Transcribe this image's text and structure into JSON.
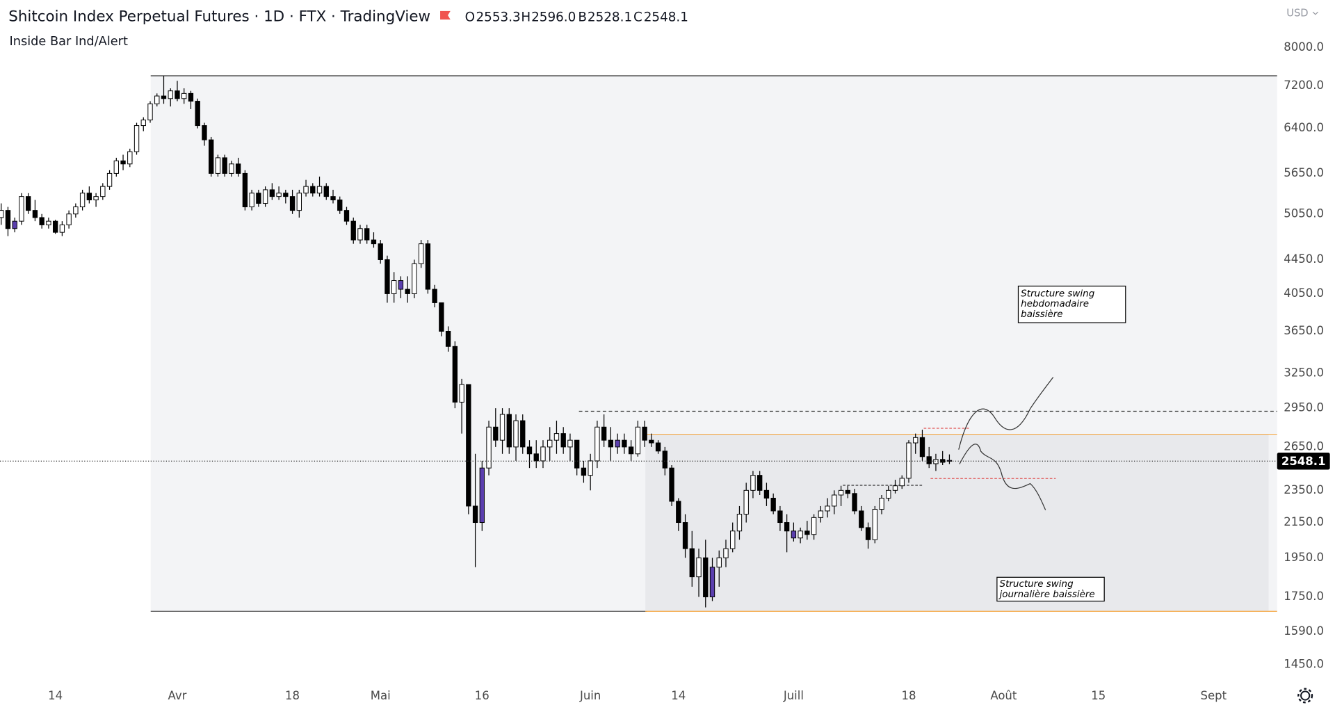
{
  "chart_data": {
    "type": "candlestick",
    "title": "Shitcoin Index Perpetual Futures · 1D · FTX · TradingView",
    "indicator": "Inside Bar Ind/Alert",
    "currency": "USD",
    "ohlc_prefixes": [
      "O",
      "H",
      "B",
      "C"
    ],
    "ohlc_value_labels": [
      "2553.3",
      "2596.0",
      "2528.1",
      "2548.1"
    ],
    "log_scale": true,
    "grid": false,
    "up_color": "#ffffff",
    "down_color": "#000000",
    "inside_bar_color": "#5b3fae",
    "ylim": [
      1386,
      9130
    ],
    "yticks": [
      {
        "value": 8000,
        "label": "8000.0"
      },
      {
        "value": 7200,
        "label": "7200.0"
      },
      {
        "value": 6400,
        "label": "6400.0"
      },
      {
        "value": 5650,
        "label": "5650.0"
      },
      {
        "value": 5050,
        "label": "5050.0"
      },
      {
        "value": 4450,
        "label": "4450.0"
      },
      {
        "value": 4050,
        "label": "4050.0"
      },
      {
        "value": 3650,
        "label": "3650.0"
      },
      {
        "value": 3250,
        "label": "3250.0"
      },
      {
        "value": 2950,
        "label": "2950.0"
      },
      {
        "value": 2650,
        "label": "2650.0"
      },
      {
        "value": 2350,
        "label": "2350.0"
      },
      {
        "value": 2150,
        "label": "2150.0"
      },
      {
        "value": 1950,
        "label": "1950.0"
      },
      {
        "value": 1750,
        "label": "1750.0"
      },
      {
        "value": 1590,
        "label": "1590.0"
      },
      {
        "value": 1450,
        "label": "1450.0"
      }
    ],
    "annotations": [
      {
        "lines": [
          "Structure swing",
          "hebdomadaire",
          "baissière"
        ]
      },
      {
        "lines": [
          "Structure swing",
          "journalière baissière"
        ]
      }
    ],
    "categories": [
      null,
      null,
      null,
      null,
      null,
      null,
      null,
      null,
      "14",
      null,
      null,
      null,
      null,
      null,
      null,
      null,
      null,
      null,
      null,
      null,
      null,
      null,
      null,
      null,
      null,
      null,
      "Avr",
      null,
      null,
      null,
      null,
      null,
      null,
      null,
      null,
      null,
      null,
      null,
      null,
      null,
      null,
      null,
      null,
      "18",
      null,
      null,
      null,
      null,
      null,
      null,
      null,
      null,
      null,
      null,
      null,
      null,
      "Mai",
      null,
      null,
      null,
      null,
      null,
      null,
      null,
      null,
      null,
      null,
      null,
      null,
      null,
      null,
      "16",
      null,
      null,
      null,
      null,
      null,
      null,
      null,
      null,
      null,
      null,
      null,
      null,
      null,
      null,
      null,
      "Juin",
      null,
      null,
      null,
      null,
      null,
      null,
      null,
      null,
      null,
      null,
      null,
      null,
      "14",
      null,
      null,
      null,
      null,
      null,
      null,
      null,
      null,
      null,
      null,
      null,
      null,
      null,
      null,
      null,
      null,
      "Juill",
      null,
      null,
      null,
      null,
      null,
      null,
      null,
      null,
      null,
      null,
      null,
      null,
      null,
      null,
      null,
      null,
      "18",
      null,
      null,
      null,
      null,
      null,
      null,
      null,
      null,
      null,
      null,
      null,
      null,
      null,
      "Août",
      null,
      null,
      null,
      null,
      null,
      null,
      null,
      null,
      null,
      null,
      null,
      null,
      null,
      "15",
      null,
      null,
      null,
      null,
      null,
      null,
      null,
      null,
      null,
      null,
      null,
      null,
      null,
      null,
      null,
      null,
      "Sept",
      null,
      null,
      null,
      null,
      null,
      null,
      null,
      null,
      null
    ],
    "ohlc": [
      [
        5000,
        5200,
        4900,
        5100
      ],
      [
        5100,
        5150,
        4750,
        4850
      ],
      [
        4850,
        5000,
        4800,
        4950
      ],
      [
        4950,
        5350,
        4900,
        5300
      ],
      [
        5300,
        5350,
        5050,
        5100
      ],
      [
        5100,
        5250,
        4950,
        5000
      ],
      [
        5000,
        5050,
        4850,
        4900
      ],
      [
        4900,
        5000,
        4850,
        4950
      ],
      [
        4950,
        4970,
        4780,
        4800
      ],
      [
        4800,
        4950,
        4750,
        4900
      ],
      [
        4900,
        5100,
        4850,
        5050
      ],
      [
        5050,
        5200,
        5000,
        5150
      ],
      [
        5150,
        5400,
        5100,
        5350
      ],
      [
        5350,
        5450,
        5200,
        5250
      ],
      [
        5250,
        5350,
        5150,
        5300
      ],
      [
        5300,
        5500,
        5250,
        5450
      ],
      [
        5450,
        5700,
        5400,
        5650
      ],
      [
        5650,
        5900,
        5600,
        5850
      ],
      [
        5850,
        5950,
        5700,
        5800
      ],
      [
        5800,
        6050,
        5750,
        6000
      ],
      [
        6000,
        6500,
        5950,
        6450
      ],
      [
        6450,
        6600,
        6350,
        6550
      ],
      [
        6550,
        6900,
        6500,
        6850
      ],
      [
        6850,
        7050,
        6800,
        7000
      ],
      [
        7000,
        7400,
        6850,
        6950
      ],
      [
        6950,
        7150,
        6800,
        7100
      ],
      [
        7100,
        7300,
        6900,
        6950
      ],
      [
        6950,
        7150,
        6850,
        7050
      ],
      [
        7050,
        7100,
        6750,
        6900
      ],
      [
        6900,
        6950,
        6400,
        6450
      ],
      [
        6450,
        6500,
        6100,
        6200
      ],
      [
        6200,
        6250,
        5600,
        5650
      ],
      [
        5650,
        5950,
        5600,
        5900
      ],
      [
        5900,
        5950,
        5600,
        5650
      ],
      [
        5650,
        5850,
        5600,
        5800
      ],
      [
        5800,
        5900,
        5600,
        5650
      ],
      [
        5650,
        5700,
        5100,
        5150
      ],
      [
        5150,
        5400,
        5100,
        5350
      ],
      [
        5350,
        5400,
        5150,
        5200
      ],
      [
        5200,
        5450,
        5150,
        5400
      ],
      [
        5400,
        5500,
        5250,
        5300
      ],
      [
        5300,
        5450,
        5250,
        5350
      ],
      [
        5350,
        5400,
        5200,
        5300
      ],
      [
        5300,
        5400,
        5050,
        5100
      ],
      [
        5100,
        5400,
        5000,
        5350
      ],
      [
        5350,
        5550,
        5300,
        5450
      ],
      [
        5450,
        5500,
        5300,
        5350
      ],
      [
        5350,
        5600,
        5300,
        5450
      ],
      [
        5450,
        5500,
        5250,
        5300
      ],
      [
        5300,
        5400,
        5200,
        5250
      ],
      [
        5250,
        5300,
        5050,
        5100
      ],
      [
        5100,
        5150,
        4900,
        4950
      ],
      [
        4950,
        5000,
        4650,
        4700
      ],
      [
        4700,
        4900,
        4650,
        4850
      ],
      [
        4850,
        4900,
        4650,
        4700
      ],
      [
        4700,
        4800,
        4600,
        4650
      ],
      [
        4650,
        4700,
        4400,
        4450
      ],
      [
        4450,
        4500,
        3950,
        4050
      ],
      [
        4050,
        4300,
        3950,
        4200
      ],
      [
        4200,
        4250,
        4000,
        4100
      ],
      [
        4100,
        4250,
        3950,
        4050
      ],
      [
        4050,
        4450,
        4000,
        4400
      ],
      [
        4400,
        4700,
        4350,
        4650
      ],
      [
        4650,
        4700,
        4050,
        4100
      ],
      [
        4100,
        4150,
        3900,
        3950
      ],
      [
        3950,
        3950,
        3600,
        3650
      ],
      [
        3650,
        3700,
        3450,
        3500
      ],
      [
        3500,
        3550,
        2950,
        3000
      ],
      [
        3000,
        3200,
        2750,
        3150
      ],
      [
        3150,
        3150,
        2200,
        2250
      ],
      [
        2250,
        2600,
        1900,
        2150
      ],
      [
        2150,
        2550,
        2100,
        2500
      ],
      [
        2500,
        2850,
        2450,
        2800
      ],
      [
        2800,
        2950,
        2650,
        2700
      ],
      [
        2700,
        2950,
        2600,
        2900
      ],
      [
        2900,
        2950,
        2600,
        2650
      ],
      [
        2650,
        2900,
        2550,
        2850
      ],
      [
        2850,
        2900,
        2600,
        2650
      ],
      [
        2650,
        2700,
        2500,
        2600
      ],
      [
        2600,
        2700,
        2500,
        2550
      ],
      [
        2550,
        2700,
        2500,
        2650
      ],
      [
        2650,
        2800,
        2550,
        2700
      ],
      [
        2700,
        2850,
        2600,
        2750
      ],
      [
        2750,
        2800,
        2600,
        2650
      ],
      [
        2650,
        2750,
        2550,
        2700
      ],
      [
        2700,
        2700,
        2450,
        2500
      ],
      [
        2500,
        2550,
        2400,
        2450
      ],
      [
        2450,
        2600,
        2350,
        2550
      ],
      [
        2550,
        2850,
        2500,
        2800
      ],
      [
        2800,
        2900,
        2650,
        2700
      ],
      [
        2700,
        2800,
        2550,
        2650
      ],
      [
        2650,
        2750,
        2600,
        2700
      ],
      [
        2700,
        2750,
        2600,
        2650
      ],
      [
        2650,
        2700,
        2550,
        2600
      ],
      [
        2600,
        2850,
        2580,
        2800
      ],
      [
        2800,
        2850,
        2650,
        2700
      ],
      [
        2700,
        2750,
        2650,
        2680
      ],
      [
        2680,
        2700,
        2600,
        2620
      ],
      [
        2620,
        2650,
        2450,
        2500
      ],
      [
        2500,
        2520,
        2250,
        2280
      ],
      [
        2280,
        2300,
        2100,
        2150
      ],
      [
        2150,
        2200,
        1950,
        2000
      ],
      [
        2000,
        2100,
        1800,
        1850
      ],
      [
        1850,
        2000,
        1750,
        1950
      ],
      [
        1950,
        2050,
        1700,
        1750
      ],
      [
        1750,
        1950,
        1730,
        1900
      ],
      [
        1900,
        1990,
        1800,
        1950
      ],
      [
        1950,
        2050,
        1900,
        2000
      ],
      [
        2000,
        2150,
        1980,
        2100
      ],
      [
        2100,
        2250,
        2050,
        2200
      ],
      [
        2200,
        2400,
        2150,
        2350
      ],
      [
        2350,
        2480,
        2300,
        2450
      ],
      [
        2450,
        2480,
        2320,
        2350
      ],
      [
        2350,
        2400,
        2250,
        2300
      ],
      [
        2300,
        2330,
        2200,
        2220
      ],
      [
        2220,
        2250,
        2100,
        2150
      ],
      [
        2150,
        2200,
        1980,
        2100
      ],
      [
        2100,
        2150,
        2040,
        2060
      ],
      [
        2060,
        2120,
        2030,
        2100
      ],
      [
        2100,
        2160,
        2050,
        2080
      ],
      [
        2080,
        2200,
        2050,
        2180
      ],
      [
        2180,
        2250,
        2150,
        2220
      ],
      [
        2220,
        2300,
        2180,
        2250
      ],
      [
        2250,
        2350,
        2200,
        2320
      ],
      [
        2320,
        2380,
        2250,
        2350
      ],
      [
        2350,
        2380,
        2300,
        2330
      ],
      [
        2330,
        2360,
        2200,
        2220
      ],
      [
        2220,
        2250,
        2100,
        2120
      ],
      [
        2120,
        2150,
        2000,
        2050
      ],
      [
        2050,
        2250,
        2030,
        2230
      ],
      [
        2230,
        2320,
        2200,
        2300
      ],
      [
        2300,
        2380,
        2280,
        2350
      ],
      [
        2350,
        2420,
        2330,
        2380
      ],
      [
        2380,
        2450,
        2360,
        2430
      ],
      [
        2430,
        2700,
        2400,
        2680
      ],
      [
        2680,
        2750,
        2600,
        2720
      ],
      [
        2720,
        2780,
        2550,
        2580
      ],
      [
        2580,
        2650,
        2500,
        2530
      ],
      [
        2530,
        2600,
        2480,
        2560
      ],
      [
        2560,
        2620,
        2520,
        2540
      ],
      [
        2553.3,
        2596.0,
        2528.1,
        2548.1
      ],
      null,
      null,
      null,
      null,
      null,
      null,
      null,
      null,
      null,
      null,
      null,
      null,
      null,
      null,
      null,
      null,
      null,
      null,
      null,
      null,
      null,
      null,
      null,
      null,
      null,
      null,
      null,
      null,
      null,
      null,
      null,
      null,
      null,
      null,
      null,
      null,
      null,
      null,
      null,
      null,
      null,
      null,
      null,
      null,
      null,
      null,
      null,
      null
    ]
  }
}
